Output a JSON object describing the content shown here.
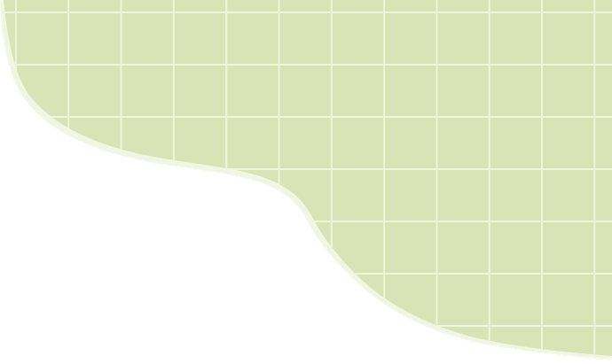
{
  "colors": {
    "background": "#ffffff",
    "paper_fill": "#d8e4b6",
    "grid_line": "#eef5d9",
    "edge_fill": "#e4edc8"
  },
  "decoration": {
    "kind": "green grid paper with torn, wavy edge",
    "icon": "grid-paper-icon"
  }
}
